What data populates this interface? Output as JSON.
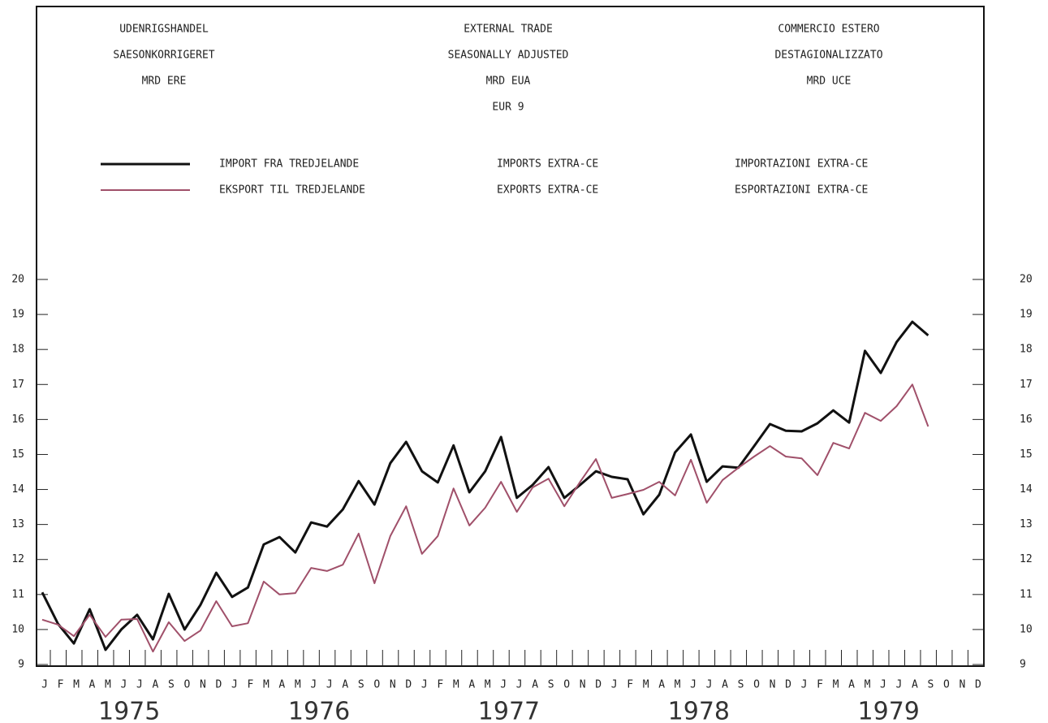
{
  "chart_data": {
    "type": "line",
    "title_columns": [
      [
        "UDENRIGSHANDEL",
        "SAESONKORRIGERET",
        "MRD ERE"
      ],
      [
        "EXTERNAL TRADE",
        "SEASONALLY ADJUSTED",
        "MRD EUA",
        "EUR 9"
      ],
      [
        "COMMERCIO ESTERO",
        "DESTAGIONALIZZATO",
        "MRD UCE"
      ]
    ],
    "categories": [
      "J",
      "F",
      "M",
      "A",
      "M",
      "J",
      "J",
      "A",
      "S",
      "O",
      "N",
      "D",
      "J",
      "F",
      "M",
      "A",
      "M",
      "J",
      "J",
      "A",
      "S",
      "O",
      "N",
      "D",
      "J",
      "F",
      "M",
      "A",
      "M",
      "J",
      "J",
      "A",
      "S",
      "O",
      "N",
      "D",
      "J",
      "F",
      "M",
      "A",
      "M",
      "J",
      "J",
      "A",
      "S",
      "O",
      "N",
      "D",
      "J",
      "F",
      "M",
      "A",
      "M",
      "J",
      "J",
      "A",
      "S",
      "O",
      "N",
      "D"
    ],
    "years": [
      "1975",
      "1976",
      "1977",
      "1978",
      "1979"
    ],
    "series": [
      {
        "name": "IMPORTS EXTRA-CE",
        "name_da": "IMPORT FRA TREDJELANDE",
        "name_it": "IMPORTAZIONI EXTRA-CE",
        "color": "#111111",
        "values": [
          11.06,
          10.16,
          9.6,
          10.58,
          9.42,
          10.0,
          10.42,
          9.72,
          11.02,
          10.0,
          10.7,
          11.62,
          10.93,
          11.2,
          12.43,
          12.64,
          12.2,
          13.06,
          12.94,
          13.43,
          14.24,
          13.57,
          14.75,
          15.36,
          14.52,
          14.2,
          15.26,
          13.92,
          14.52,
          15.5,
          13.76,
          14.13,
          14.64,
          13.76,
          14.13,
          14.52,
          14.36,
          14.29,
          13.29,
          13.85,
          15.06,
          15.57,
          14.22,
          14.66,
          14.62,
          15.24,
          15.87,
          15.68,
          15.66,
          15.89,
          16.26,
          15.91,
          17.96,
          17.33,
          18.21,
          18.79,
          18.4,
          null,
          null,
          null
        ]
      },
      {
        "name": "EXPORTS EXTRA-CE",
        "name_da": "EKSPORT TIL TREDJELANDE",
        "name_it": "ESPORTAZIONI EXTRA-CE",
        "color": "#a0506a",
        "values": [
          10.28,
          10.14,
          9.81,
          10.42,
          9.79,
          10.28,
          10.3,
          9.37,
          10.21,
          9.67,
          9.97,
          10.81,
          10.09,
          10.18,
          11.37,
          11.0,
          11.04,
          11.76,
          11.67,
          11.85,
          12.74,
          11.32,
          12.67,
          13.52,
          12.16,
          12.67,
          14.03,
          12.97,
          13.48,
          14.22,
          13.36,
          14.06,
          14.31,
          13.52,
          14.22,
          14.87,
          13.76,
          13.87,
          13.99,
          14.22,
          13.83,
          14.85,
          13.62,
          14.27,
          14.62,
          14.94,
          15.24,
          14.94,
          14.89,
          14.41,
          15.33,
          15.17,
          16.19,
          15.96,
          16.38,
          17.0,
          15.8,
          null,
          null,
          null
        ]
      }
    ],
    "ylim": [
      9,
      20
    ],
    "yticks": [
      9,
      10,
      11,
      12,
      13,
      14,
      15,
      16,
      17,
      18,
      19,
      20
    ],
    "y2lim": [
      9,
      20
    ],
    "y2ticks": [
      9,
      10,
      11,
      12,
      13,
      14,
      15,
      16,
      17,
      18,
      19,
      20
    ]
  }
}
